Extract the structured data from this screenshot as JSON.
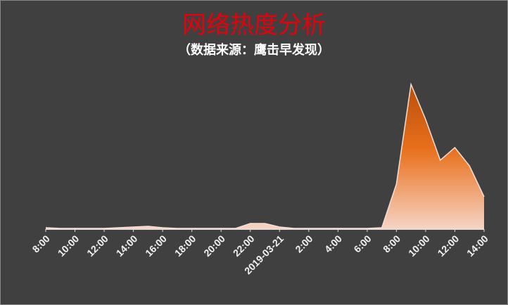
{
  "chart_data": {
    "type": "area",
    "title": "网络热度分析",
    "subtitle": "（数据来源：鹰击早发现）",
    "categories": [
      "8:00",
      null,
      "10:00",
      null,
      "12:00",
      null,
      "14:00",
      null,
      "16:00",
      null,
      "18:00",
      null,
      "20:00",
      null,
      "22:00",
      null,
      "2019-03-21",
      null,
      "2:00",
      null,
      "4:00",
      null,
      "6:00",
      null,
      "8:00",
      null,
      "10:00",
      null,
      "12:00",
      null,
      "14:00"
    ],
    "values": [
      2,
      1,
      1,
      1,
      1,
      2,
      3,
      4,
      2,
      1,
      1,
      1,
      1,
      1,
      8,
      8,
      3,
      1,
      1,
      1,
      1,
      1,
      1,
      2,
      64,
      206,
      156,
      98,
      116,
      90,
      46
    ],
    "color": "#e06a14"
  }
}
